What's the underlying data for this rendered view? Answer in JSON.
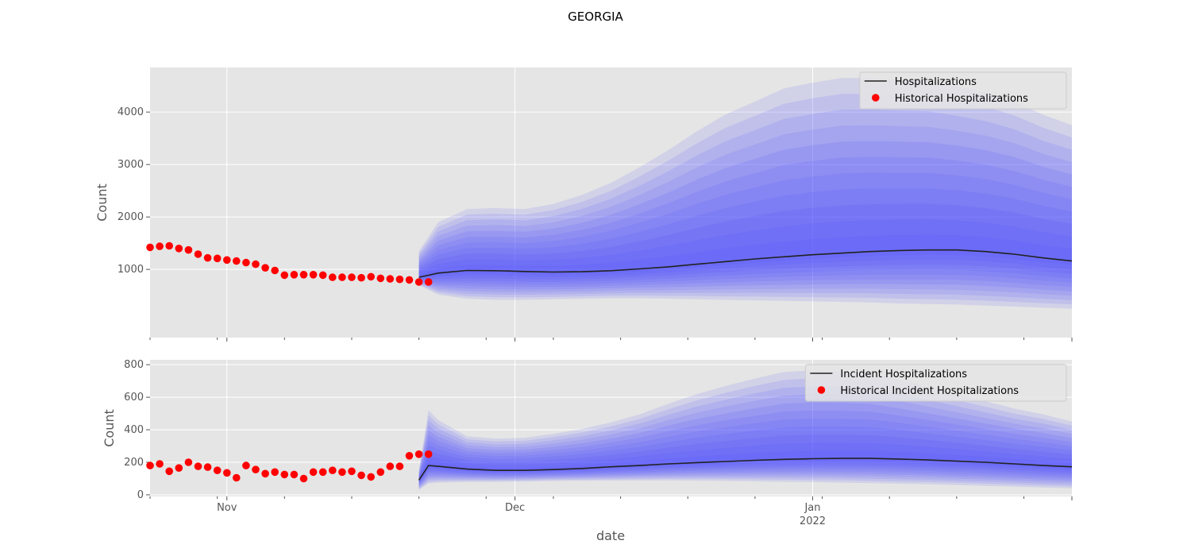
{
  "figure": {
    "title": "GEORGIA",
    "xlabel": "date"
  },
  "x_ticks": [
    {
      "label": "Nov",
      "sub": "",
      "day": 8
    },
    {
      "label": "Dec",
      "sub": "",
      "day": 38
    },
    {
      "label": "Jan",
      "sub": "2022",
      "day": 69
    }
  ],
  "colors": {
    "panel_bg": "#e5e5e5",
    "grid": "#ffffff",
    "band": "#4d4dff",
    "median": "#222222",
    "historical": "#ff0000"
  },
  "chart_data": [
    {
      "type": "line",
      "panel": "top",
      "ylabel": "Count",
      "ylim": [
        -300,
        4850
      ],
      "yticks": [
        1000,
        2000,
        3000,
        4000
      ],
      "xlim_days": [
        0,
        96
      ],
      "legend": {
        "position": "top-right",
        "entries": [
          "Hospitalizations",
          "Historical Hospitalizations"
        ]
      },
      "historical": {
        "name": "Historical Hospitalizations",
        "x_days": [
          0,
          1,
          2,
          3,
          4,
          5,
          6,
          7,
          8,
          9,
          10,
          11,
          12,
          13,
          14,
          15,
          16,
          17,
          18,
          19,
          20,
          21,
          22,
          23,
          24,
          25,
          26,
          27,
          28,
          29
        ],
        "y": [
          1420,
          1440,
          1450,
          1400,
          1370,
          1290,
          1220,
          1210,
          1180,
          1160,
          1130,
          1100,
          1030,
          980,
          890,
          900,
          900,
          900,
          890,
          850,
          850,
          850,
          840,
          860,
          830,
          820,
          810,
          800,
          760,
          760
        ]
      },
      "median": {
        "name": "Hospitalizations",
        "x_days": [
          28,
          30,
          33,
          36,
          39,
          42,
          45,
          48,
          51,
          54,
          57,
          60,
          63,
          66,
          69,
          72,
          75,
          78,
          81,
          84,
          87,
          90,
          93,
          96
        ],
        "y": [
          850,
          930,
          980,
          975,
          960,
          950,
          955,
          975,
          1010,
          1050,
          1100,
          1150,
          1200,
          1240,
          1280,
          1310,
          1340,
          1360,
          1370,
          1370,
          1340,
          1290,
          1220,
          1160
        ]
      },
      "bands": {
        "x_days": [
          28,
          30,
          33,
          36,
          39,
          42,
          45,
          48,
          51,
          54,
          57,
          60,
          63,
          66,
          69,
          72,
          75,
          78,
          81,
          84,
          87,
          90,
          93,
          96
        ],
        "upper_outer": [
          1350,
          1900,
          2150,
          2170,
          2150,
          2250,
          2420,
          2650,
          2950,
          3280,
          3640,
          3960,
          4200,
          4450,
          4560,
          4650,
          4650,
          4620,
          4600,
          4500,
          4380,
          4200,
          3950,
          3750
        ],
        "lower_outer": [
          700,
          520,
          440,
          420,
          420,
          430,
          440,
          450,
          450,
          440,
          430,
          420,
          410,
          400,
          390,
          380,
          370,
          350,
          340,
          330,
          310,
          290,
          270,
          250
        ]
      }
    },
    {
      "type": "line",
      "panel": "bottom",
      "ylabel": "Count",
      "ylim": [
        -10,
        830
      ],
      "yticks": [
        0,
        200,
        400,
        600,
        800
      ],
      "xlim_days": [
        0,
        96
      ],
      "legend": {
        "position": "top-right",
        "entries": [
          "Incident Hospitalizations",
          "Historical Incident Hospitalizations"
        ]
      },
      "historical": {
        "name": "Historical Incident Hospitalizations",
        "x_days": [
          0,
          1,
          2,
          3,
          4,
          5,
          6,
          7,
          8,
          9,
          10,
          11,
          12,
          13,
          14,
          15,
          16,
          17,
          18,
          19,
          20,
          21,
          22,
          23,
          24,
          25,
          26,
          27,
          28,
          29
        ],
        "y": [
          180,
          190,
          145,
          165,
          200,
          175,
          170,
          150,
          135,
          105,
          180,
          155,
          130,
          140,
          125,
          125,
          100,
          140,
          140,
          150,
          140,
          145,
          120,
          110,
          140,
          175,
          175,
          240,
          250,
          250
        ]
      },
      "median": {
        "name": "Incident Hospitalizations",
        "x_days": [
          28,
          29,
          30,
          33,
          36,
          39,
          42,
          45,
          48,
          51,
          54,
          57,
          60,
          63,
          66,
          69,
          72,
          75,
          78,
          81,
          84,
          87,
          90,
          93,
          96
        ],
        "y": [
          90,
          180,
          175,
          158,
          150,
          150,
          155,
          162,
          172,
          180,
          190,
          198,
          205,
          212,
          218,
          222,
          224,
          224,
          220,
          214,
          207,
          200,
          190,
          180,
          172
        ]
      },
      "bands": {
        "x_days": [
          28,
          29,
          30,
          33,
          36,
          39,
          42,
          45,
          48,
          51,
          54,
          57,
          60,
          63,
          66,
          69,
          72,
          75,
          78,
          81,
          84,
          87,
          90,
          93,
          96
        ],
        "upper_outer": [
          150,
          520,
          460,
          360,
          345,
          350,
          375,
          405,
          445,
          495,
          560,
          620,
          670,
          715,
          755,
          765,
          760,
          750,
          710,
          665,
          620,
          575,
          530,
          495,
          450
        ],
        "lower_outer": [
          30,
          70,
          75,
          80,
          80,
          82,
          85,
          86,
          87,
          88,
          88,
          87,
          85,
          83,
          80,
          78,
          75,
          72,
          68,
          65,
          60,
          55,
          50,
          45,
          40
        ]
      }
    }
  ]
}
